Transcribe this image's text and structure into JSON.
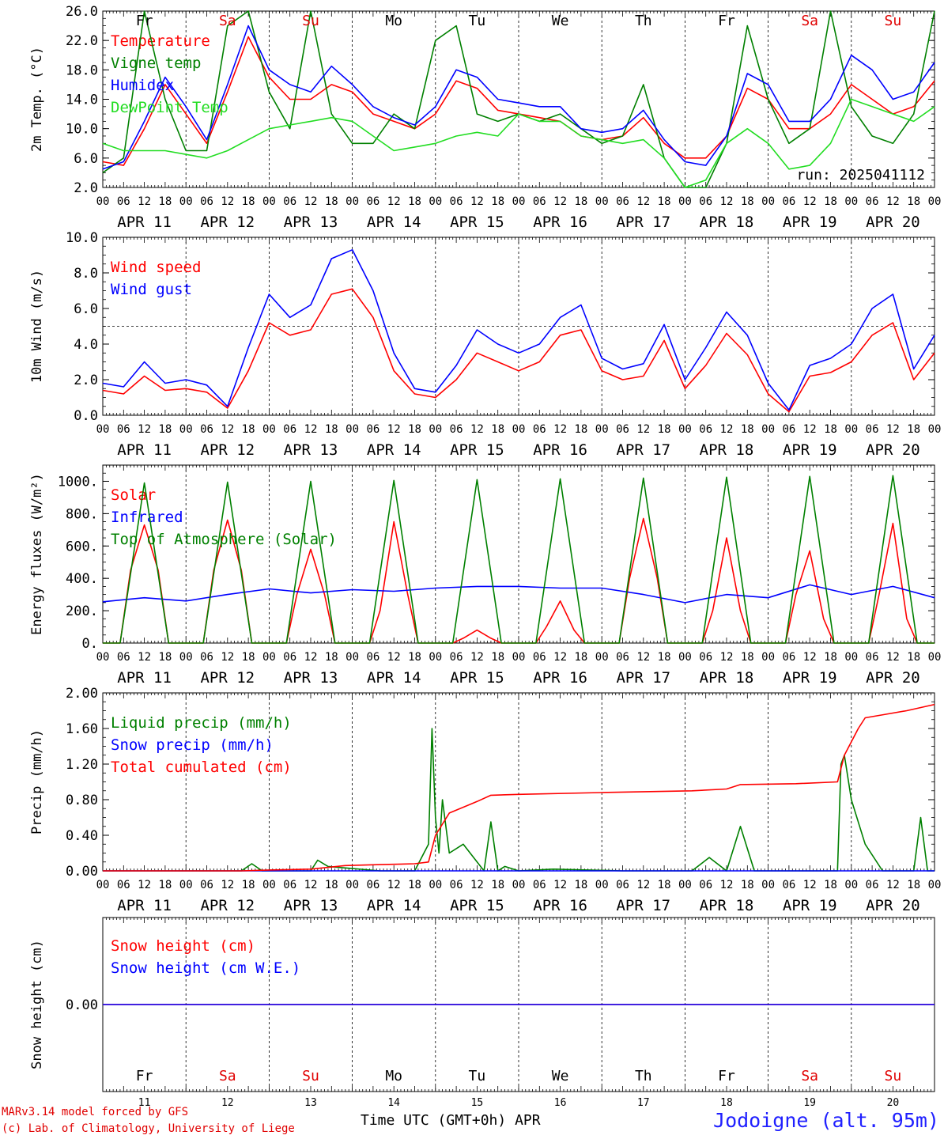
{
  "x_axis": {
    "hour_ticks": [
      "00",
      "06",
      "12",
      "18"
    ],
    "dates": [
      "APR 11",
      "APR 12",
      "APR 13",
      "APR 14",
      "APR 15",
      "APR 16",
      "APR 17",
      "APR 18",
      "APR 19",
      "APR 20"
    ],
    "day_names": [
      "Fr",
      "Sa",
      "Su",
      "Mo",
      "Tu",
      "We",
      "Th",
      "Fr",
      "Sa",
      "Su"
    ],
    "weekend_days": [
      false,
      true,
      true,
      false,
      false,
      false,
      false,
      false,
      true,
      true
    ],
    "day_numbers": [
      "11",
      "12",
      "13",
      "14",
      "15",
      "16",
      "17",
      "18",
      "19",
      "20"
    ]
  },
  "footer": {
    "model": "MARv3.14 model forced by GFS",
    "copyright": "(c) Lab. of Climatology, University of Liege",
    "x_title": "Time UTC (GMT+0h) APR",
    "station": "Jodoigne (alt. 95m)"
  },
  "colors": {
    "red": "#ff0000",
    "green": "#008000",
    "blue": "#0000ff",
    "lightgreen": "#22dd22",
    "grid": "#000000",
    "weekend": "#e00000"
  },
  "chart_data": [
    {
      "type": "line",
      "ylabel": "2m Temp. (°C)",
      "ylim": [
        2.0,
        26.0
      ],
      "yticks": [
        "2.0",
        "6.0",
        "10.0",
        "14.0",
        "18.0",
        "22.0",
        "26.0"
      ],
      "yvals": [
        2,
        6,
        10,
        14,
        18,
        22,
        26
      ],
      "run_label": "run: 2025041112",
      "x_unit": "hours since APR 11 00 UTC",
      "series": [
        {
          "name": "Temperature",
          "color": "#ff0000",
          "x": [
            0,
            6,
            12,
            18,
            24,
            30,
            36,
            42,
            48,
            54,
            60,
            66,
            72,
            78,
            84,
            90,
            96,
            102,
            108,
            114,
            120,
            126,
            132,
            138,
            144,
            150,
            156,
            162,
            168,
            174,
            180,
            186,
            192,
            198,
            204,
            210,
            216,
            222,
            228,
            234,
            240
          ],
          "y": [
            5.5,
            5,
            10,
            16,
            12,
            8,
            15,
            22.5,
            17,
            14,
            14,
            16,
            15,
            12,
            11,
            10,
            12,
            16.5,
            15.5,
            12.5,
            12,
            11.5,
            11,
            9,
            8.5,
            9,
            11.5,
            8,
            6,
            6,
            9,
            15.5,
            14,
            10,
            10,
            12,
            16,
            14,
            12,
            13,
            16.5
          ]
        },
        {
          "name": "Vigne temp",
          "color": "#008000",
          "x": [
            0,
            6,
            12,
            18,
            24,
            30,
            36,
            42,
            48,
            54,
            60,
            66,
            72,
            78,
            84,
            90,
            96,
            102,
            108,
            114,
            120,
            126,
            132,
            138,
            144,
            150,
            156,
            162,
            168,
            174,
            180,
            186,
            192,
            198,
            204,
            210,
            216,
            222,
            228,
            234,
            240
          ],
          "y": [
            4,
            6,
            26,
            14,
            7,
            7,
            24,
            26,
            15,
            10,
            26,
            12,
            8,
            8,
            12,
            10,
            22,
            24,
            12,
            11,
            12,
            11,
            12,
            10,
            8,
            9,
            16,
            6,
            2,
            2,
            8,
            24,
            14,
            8,
            10,
            26,
            13,
            9,
            8,
            12,
            26
          ]
        },
        {
          "name": "Humidex",
          "color": "#0000ff",
          "x": [
            0,
            6,
            12,
            18,
            24,
            30,
            36,
            42,
            48,
            54,
            60,
            66,
            72,
            78,
            84,
            90,
            96,
            102,
            108,
            114,
            120,
            126,
            132,
            138,
            144,
            150,
            156,
            162,
            168,
            174,
            180,
            186,
            192,
            198,
            204,
            210,
            216,
            222,
            228,
            234,
            240
          ],
          "y": [
            4.5,
            5.5,
            11,
            17,
            13,
            8.5,
            16,
            24,
            18,
            16,
            15,
            18.5,
            16,
            13,
            11.5,
            10.5,
            13,
            18,
            17,
            14,
            13.5,
            13,
            13,
            10,
            9.5,
            10,
            12.5,
            8.5,
            5.5,
            5,
            9,
            17.5,
            16,
            11,
            11,
            14,
            20,
            18,
            14,
            15,
            19
          ]
        },
        {
          "name": "DewPoint Temp",
          "color": "#22dd22",
          "x": [
            0,
            6,
            12,
            18,
            24,
            30,
            36,
            42,
            48,
            54,
            60,
            66,
            72,
            78,
            84,
            90,
            96,
            102,
            108,
            114,
            120,
            126,
            132,
            138,
            144,
            150,
            156,
            162,
            168,
            174,
            180,
            186,
            192,
            198,
            204,
            210,
            216,
            222,
            228,
            234,
            240
          ],
          "y": [
            8,
            7,
            7,
            7,
            6.5,
            6,
            7,
            8.5,
            10,
            10.5,
            11,
            11.5,
            11,
            9,
            7,
            7.5,
            8,
            9,
            9.5,
            9,
            12,
            11,
            11,
            9,
            8.5,
            8,
            8.5,
            6,
            2,
            3,
            8,
            10,
            8,
            4.5,
            5,
            8,
            14,
            13,
            12,
            11,
            13
          ]
        }
      ]
    },
    {
      "type": "line",
      "ylabel": "10m Wind (m/s)",
      "ylim": [
        0.0,
        10.0
      ],
      "yticks": [
        "0.0",
        "2.0",
        "4.0",
        "6.0",
        "8.0",
        "10.0"
      ],
      "yvals": [
        0,
        2,
        4,
        6,
        8,
        10
      ],
      "ref_line": 5.0,
      "x_unit": "hours since APR 11 00 UTC",
      "series": [
        {
          "name": "Wind speed",
          "color": "#ff0000",
          "x": [
            0,
            6,
            12,
            18,
            24,
            30,
            36,
            42,
            48,
            54,
            60,
            66,
            72,
            78,
            84,
            90,
            96,
            102,
            108,
            114,
            120,
            126,
            132,
            138,
            144,
            150,
            156,
            162,
            168,
            174,
            180,
            186,
            192,
            198,
            204,
            210,
            216,
            222,
            228,
            234,
            240
          ],
          "y": [
            1.4,
            1.2,
            2.2,
            1.4,
            1.5,
            1.3,
            0.4,
            2.5,
            5.2,
            4.5,
            4.8,
            6.8,
            7.1,
            5.5,
            2.5,
            1.2,
            1,
            2,
            3.5,
            3,
            2.5,
            3,
            4.5,
            4.8,
            2.5,
            2,
            2.2,
            4.2,
            1.5,
            2.8,
            4.6,
            3.4,
            1.2,
            0.2,
            2.2,
            2.4,
            3,
            4.5,
            5.2,
            2,
            3.5
          ]
        },
        {
          "name": "Wind gust",
          "color": "#0000ff",
          "x": [
            0,
            6,
            12,
            18,
            24,
            30,
            36,
            42,
            48,
            54,
            60,
            66,
            72,
            78,
            84,
            90,
            96,
            102,
            108,
            114,
            120,
            126,
            132,
            138,
            144,
            150,
            156,
            162,
            168,
            174,
            180,
            186,
            192,
            198,
            204,
            210,
            216,
            222,
            228,
            234,
            240
          ],
          "y": [
            1.8,
            1.6,
            3,
            1.8,
            2,
            1.7,
            0.5,
            3.8,
            6.8,
            5.5,
            6.2,
            8.8,
            9.3,
            7,
            3.5,
            1.5,
            1.3,
            2.8,
            4.8,
            4,
            3.5,
            4,
            5.5,
            6.2,
            3.2,
            2.6,
            2.9,
            5.1,
            2,
            3.8,
            5.8,
            4.5,
            1.8,
            0.3,
            2.8,
            3.2,
            4,
            6,
            6.8,
            2.6,
            4.5
          ]
        }
      ]
    },
    {
      "type": "line",
      "ylabel": "Energy fluxes (W/m²)",
      "ylim": [
        0,
        1100
      ],
      "yticks": [
        "0.",
        "200.",
        "400.",
        "600.",
        "800.",
        "1000."
      ],
      "yvals": [
        0,
        200,
        400,
        600,
        800,
        1000
      ],
      "x_unit": "hours since APR 11 00 UTC",
      "series": [
        {
          "name": "Solar",
          "color": "#ff0000",
          "x": [
            0,
            5,
            8,
            12,
            16,
            19,
            29,
            32,
            36,
            40,
            43,
            53,
            56,
            60,
            64,
            67,
            77,
            80,
            84,
            88,
            91,
            101,
            104,
            108,
            112,
            115,
            125,
            128,
            132,
            136,
            139,
            149,
            152,
            156,
            160,
            163,
            173,
            176,
            180,
            184,
            187,
            197,
            200,
            204,
            208,
            211,
            221,
            224,
            228,
            232,
            235,
            240
          ],
          "y": [
            0,
            0,
            450,
            730,
            450,
            0,
            0,
            450,
            760,
            450,
            0,
            0,
            300,
            580,
            300,
            0,
            0,
            200,
            750,
            300,
            0,
            0,
            30,
            80,
            30,
            0,
            0,
            100,
            260,
            80,
            0,
            0,
            400,
            770,
            400,
            0,
            0,
            200,
            650,
            200,
            0,
            0,
            300,
            570,
            150,
            0,
            0,
            300,
            740,
            150,
            0,
            0
          ]
        },
        {
          "name": "Infrared",
          "color": "#0000ff",
          "x": [
            0,
            12,
            24,
            36,
            48,
            60,
            72,
            84,
            96,
            108,
            120,
            132,
            144,
            156,
            168,
            180,
            192,
            204,
            216,
            228,
            240
          ],
          "y": [
            255,
            280,
            260,
            300,
            335,
            310,
            330,
            320,
            340,
            350,
            350,
            340,
            340,
            300,
            250,
            300,
            280,
            360,
            300,
            350,
            280
          ]
        },
        {
          "name": "Top of Atmosphere (Solar)",
          "color": "#008000",
          "x": [
            0,
            5,
            12,
            19,
            29,
            36,
            43,
            53,
            60,
            67,
            77,
            84,
            91,
            101,
            108,
            115,
            125,
            132,
            139,
            149,
            156,
            163,
            173,
            180,
            187,
            197,
            204,
            211,
            221,
            228,
            235,
            240
          ],
          "y": [
            0,
            0,
            990,
            0,
            0,
            995,
            0,
            0,
            1000,
            0,
            0,
            1005,
            0,
            0,
            1010,
            0,
            0,
            1015,
            0,
            0,
            1020,
            0,
            0,
            1025,
            0,
            0,
            1030,
            0,
            0,
            1035,
            0,
            0
          ]
        }
      ]
    },
    {
      "type": "line",
      "ylabel": "Precip (mm/h)",
      "ylim": [
        0.0,
        2.0
      ],
      "yticks": [
        "0.00",
        "0.40",
        "0.80",
        "1.20",
        "1.60",
        "2.00"
      ],
      "yvals": [
        0,
        0.4,
        0.8,
        1.2,
        1.6,
        2.0
      ],
      "x_unit": "hours since APR 11 00 UTC",
      "series": [
        {
          "name": "Liquid precip (mm/h)",
          "color": "#008000",
          "x": [
            0,
            40,
            43,
            46,
            60,
            62,
            65,
            80,
            90,
            94,
            95,
            96,
            97,
            98,
            100,
            104,
            110,
            112,
            114,
            116,
            120,
            130,
            150,
            170,
            175,
            180,
            184,
            188,
            200,
            212,
            213,
            214,
            216,
            220,
            225,
            234,
            236,
            238,
            240
          ],
          "y": [
            0,
            0,
            0.08,
            0,
            0,
            0.12,
            0.05,
            0,
            0,
            0.3,
            1.6,
            0.6,
            0.2,
            0.8,
            0.2,
            0.3,
            0,
            0.55,
            0,
            0.05,
            0,
            0.02,
            0,
            0,
            0.15,
            0,
            0.5,
            0,
            0,
            0,
            1.2,
            1.3,
            0.8,
            0.3,
            0,
            0,
            0.6,
            0,
            0
          ]
        },
        {
          "name": "Snow precip (mm/h)",
          "color": "#0000ff",
          "x": [
            0,
            240
          ],
          "y": [
            0,
            0
          ]
        },
        {
          "name": "Total cumulated (cm)",
          "color": "#ff0000",
          "x": [
            0,
            40,
            48,
            60,
            70,
            80,
            90,
            94,
            96,
            100,
            108,
            112,
            120,
            144,
            170,
            180,
            184,
            200,
            212,
            214,
            218,
            220,
            226,
            232,
            240
          ],
          "y": [
            0,
            0,
            0.01,
            0.02,
            0.06,
            0.07,
            0.08,
            0.1,
            0.4,
            0.65,
            0.78,
            0.85,
            0.86,
            0.88,
            0.9,
            0.92,
            0.97,
            0.98,
            1.0,
            1.3,
            1.6,
            1.72,
            1.76,
            1.8,
            1.87
          ]
        }
      ]
    },
    {
      "type": "line",
      "ylabel": "Snow height (cm)",
      "ylim": [
        -1.0,
        1.0
      ],
      "yticks": [
        "0.00"
      ],
      "yvals": [
        0
      ],
      "x_unit": "hours since APR 11 00 UTC",
      "series": [
        {
          "name": "Snow height (cm)",
          "color": "#ff0000",
          "x": [
            0,
            240
          ],
          "y": [
            0,
            0
          ]
        },
        {
          "name": "Snow height (cm W.E.)",
          "color": "#0000ff",
          "x": [
            0,
            240
          ],
          "y": [
            0,
            0
          ]
        }
      ]
    }
  ]
}
